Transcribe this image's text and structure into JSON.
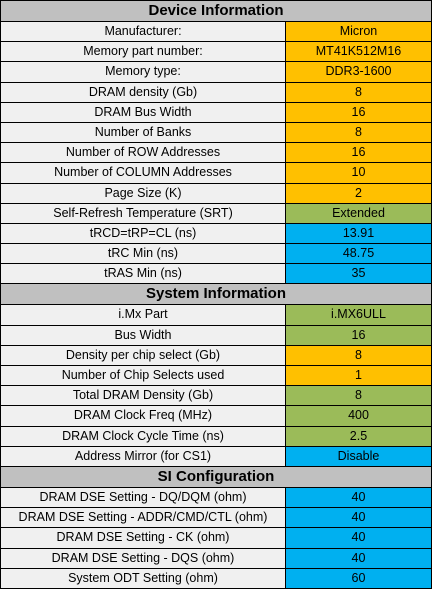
{
  "colors": {
    "orange": "#ffc000",
    "green": "#9bbb59",
    "blue": "#00b0f0",
    "header_gray": "#c0c0c0"
  },
  "sections": [
    {
      "title": "Device Information",
      "rows": [
        {
          "label": "Manufacturer:",
          "value": "Micron",
          "color": "orange"
        },
        {
          "label": "Memory part number:",
          "value": "MT41K512M16",
          "color": "orange"
        },
        {
          "label": "Memory type:",
          "value": "DDR3-1600",
          "color": "orange"
        },
        {
          "label": "DRAM density (Gb)",
          "value": "8",
          "color": "orange"
        },
        {
          "label": "DRAM Bus Width",
          "value": "16",
          "color": "orange"
        },
        {
          "label": "Number of Banks",
          "value": "8",
          "color": "orange"
        },
        {
          "label": "Number of ROW Addresses",
          "value": "16",
          "color": "orange"
        },
        {
          "label": "Number of COLUMN Addresses",
          "value": "10",
          "color": "orange"
        },
        {
          "label": "Page Size (K)",
          "value": "2",
          "color": "orange"
        },
        {
          "label": "Self-Refresh Temperature (SRT)",
          "value": "Extended",
          "color": "green"
        },
        {
          "label": "tRCD=tRP=CL (ns)",
          "value": "13.91",
          "color": "blue"
        },
        {
          "label": "tRC Min (ns)",
          "value": "48.75",
          "color": "blue"
        },
        {
          "label": "tRAS Min (ns)",
          "value": "35",
          "color": "blue"
        }
      ]
    },
    {
      "title": "System Information",
      "rows": [
        {
          "label": "i.Mx Part",
          "value": "i.MX6ULL",
          "color": "green"
        },
        {
          "label": "Bus Width",
          "value": "16",
          "color": "green"
        },
        {
          "label": "Density per chip select (Gb)",
          "value": "8",
          "color": "orange"
        },
        {
          "label": "Number of Chip Selects used",
          "value": "1",
          "color": "orange"
        },
        {
          "label": "Total DRAM Density (Gb)",
          "value": "8",
          "color": "green"
        },
        {
          "label": "DRAM Clock Freq (MHz)",
          "value": "400",
          "color": "green"
        },
        {
          "label": "DRAM Clock Cycle Time (ns)",
          "value": "2.5",
          "color": "green"
        },
        {
          "label": "Address Mirror (for CS1)",
          "value": "Disable",
          "color": "blue"
        }
      ]
    },
    {
      "title": "SI Configuration",
      "rows": [
        {
          "label": "DRAM DSE Setting - DQ/DQM (ohm)",
          "value": "40",
          "color": "blue"
        },
        {
          "label": "DRAM DSE Setting - ADDR/CMD/CTL (ohm)",
          "value": "40",
          "color": "blue"
        },
        {
          "label": "DRAM DSE Setting - CK (ohm)",
          "value": "40",
          "color": "blue"
        },
        {
          "label": "DRAM DSE Setting - DQS (ohm)",
          "value": "40",
          "color": "blue"
        },
        {
          "label": "System ODT Setting (ohm)",
          "value": "60",
          "color": "blue"
        }
      ]
    }
  ]
}
